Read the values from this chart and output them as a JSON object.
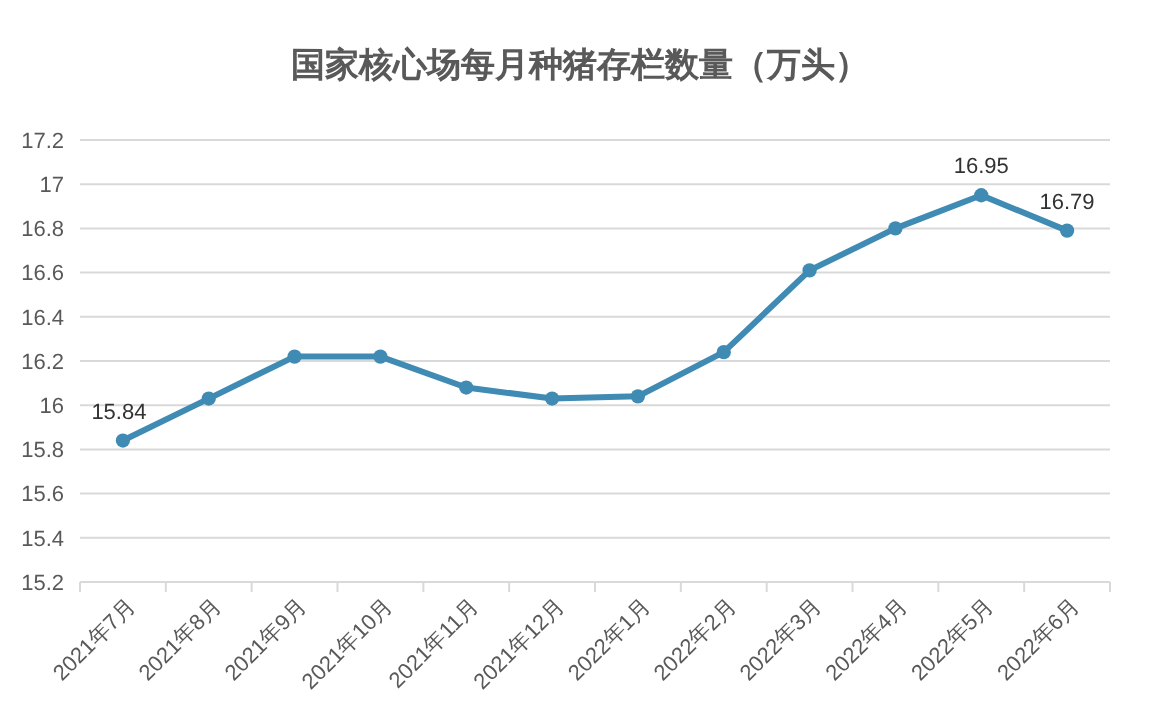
{
  "chart_data": {
    "type": "line",
    "title": "国家核心场每月种猪存栏数量（万头）",
    "categories": [
      "2021年7月",
      "2021年8月",
      "2021年9月",
      "2021年10月",
      "2021年11月",
      "2021年12月",
      "2022年1月",
      "2022年2月",
      "2022年3月",
      "2022年4月",
      "2022年5月",
      "2022年6月"
    ],
    "series": [
      {
        "color": "#3f8bb3",
        "values": [
          15.84,
          16.03,
          16.22,
          16.22,
          16.08,
          16.03,
          16.04,
          16.24,
          16.61,
          16.8,
          16.95,
          16.79
        ],
        "value_labels": [
          "15.84",
          null,
          null,
          null,
          null,
          null,
          null,
          null,
          null,
          null,
          "16.95",
          "16.79"
        ]
      }
    ],
    "ylim": [
      15.2,
      17.2
    ],
    "yticks": [
      15.2,
      15.4,
      15.6,
      15.8,
      16,
      16.2,
      16.4,
      16.6,
      16.8,
      17,
      17.2
    ],
    "grid": "y",
    "marker": "circle"
  }
}
